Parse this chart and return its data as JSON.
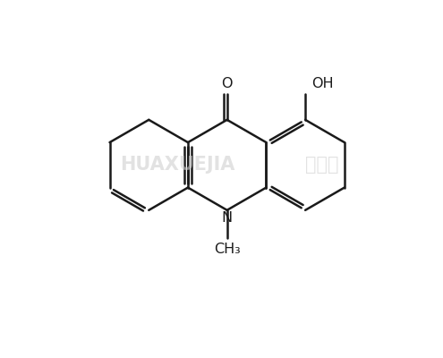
{
  "background_color": "#ffffff",
  "line_color": "#1a1a1a",
  "line_width": 1.8,
  "text_color": "#1a1a1a",
  "watermark_color": "#d0d0d0",
  "font_size": 11.5,
  "label_O": "O",
  "label_OH": "OH",
  "label_N": "N",
  "label_CH3": "CH₃",
  "watermark_1": "HUAXUEJIA",
  "watermark_2": "化学加"
}
